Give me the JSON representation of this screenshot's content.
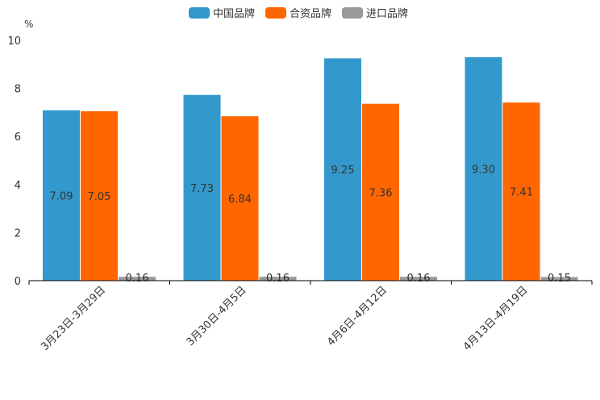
{
  "chart_data": {
    "type": "bar",
    "unit": "%",
    "categories": [
      "3月23日-3月29日",
      "3月30日-4月5日",
      "4月6日-4月12日",
      "4月13日-4月19日"
    ],
    "series": [
      {
        "name": "中国品牌",
        "color": "#3399cc",
        "values": [
          7.09,
          7.73,
          9.25,
          9.3
        ],
        "labels": [
          "7.09",
          "7.73",
          "9.25",
          "9.30"
        ]
      },
      {
        "name": "合资品牌",
        "color": "#ff6600",
        "values": [
          7.05,
          6.84,
          7.36,
          7.41
        ],
        "labels": [
          "7.05",
          "6.84",
          "7.36",
          "7.41"
        ]
      },
      {
        "name": "进口品牌",
        "color": "#999999",
        "values": [
          0.16,
          0.16,
          0.16,
          0.15
        ],
        "labels": [
          "0.16",
          "0.16",
          "0.16",
          "0.15"
        ]
      }
    ],
    "yticks": [
      "0",
      "2",
      "4",
      "6",
      "8",
      "10"
    ],
    "ylim": [
      0,
      10
    ],
    "legend_position": "top-center"
  }
}
